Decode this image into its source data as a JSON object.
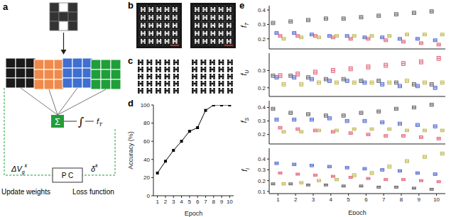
{
  "figure": {
    "panel_labels": [
      "a",
      "b",
      "c",
      "d",
      "e"
    ],
    "input_pattern": [
      [
        1,
        0,
        1
      ],
      [
        1,
        1,
        1
      ],
      [
        1,
        0,
        1
      ]
    ],
    "layer_colors": [
      "#1a1a1a",
      "#f08a4b",
      "#3f6fd1",
      "#1f9e3a"
    ],
    "sum": "Σ",
    "integral": "∫",
    "output": {
      "main": "f",
      "sub": "T"
    },
    "controller": "P C",
    "weight_update": {
      "main": "ΔV",
      "sub": "g",
      "sup": "k"
    },
    "error": {
      "main": "δ",
      "sup": "k"
    },
    "left_caption": "Update weights",
    "right_caption": "Loss function",
    "array_size": 5,
    "scale_bar_color": "#d42020"
  },
  "chart_data": [
    {
      "type": "line",
      "xlabel": "Epoch",
      "ylabel": "Accuracy (%)",
      "x": [
        1,
        2,
        3,
        4,
        5,
        6,
        7,
        8,
        9,
        10
      ],
      "values": [
        25,
        38,
        50,
        60,
        71,
        75,
        94,
        100,
        100,
        100
      ],
      "xlim": [
        0.5,
        10.5
      ],
      "xticks": [
        1,
        2,
        3,
        4,
        5,
        6,
        7,
        8,
        9,
        10
      ],
      "ylim": [
        0,
        100
      ],
      "yticks": [
        0,
        20,
        40,
        60,
        80,
        100
      ],
      "color": "#000000",
      "marker": "square"
    },
    {
      "type": "box",
      "ylabel": {
        "main": "f",
        "sub": "T"
      },
      "categories": [
        1,
        2,
        3,
        4,
        5,
        6,
        7,
        8,
        9,
        10
      ],
      "ylim": [
        0.13,
        0.43
      ],
      "yticks": [
        0.2,
        0.3,
        0.4
      ],
      "tick_labels": "y",
      "series": [
        {
          "color": "#555555",
          "values": [
            0.31,
            0.32,
            0.33,
            0.34,
            0.34,
            0.35,
            0.36,
            0.37,
            0.38,
            0.39
          ],
          "error": [
            0.012,
            0.012,
            0.012,
            0.012,
            0.012,
            0.012,
            0.012,
            0.012,
            0.012,
            0.012
          ]
        },
        {
          "color": "#3a55c8",
          "values": [
            0.24,
            0.24,
            0.23,
            0.22,
            0.22,
            0.21,
            0.21,
            0.2,
            0.2,
            0.19
          ],
          "error": [
            0.01,
            0.01,
            0.01,
            0.01,
            0.01,
            0.01,
            0.01,
            0.01,
            0.01,
            0.01
          ]
        },
        {
          "color": "#e0506a",
          "values": [
            0.22,
            0.22,
            0.22,
            0.21,
            0.2,
            0.2,
            0.19,
            0.18,
            0.17,
            0.16
          ],
          "error": [
            0.01,
            0.01,
            0.01,
            0.01,
            0.01,
            0.01,
            0.01,
            0.01,
            0.01,
            0.01
          ]
        },
        {
          "color": "#b8b040",
          "values": [
            0.2,
            0.21,
            0.21,
            0.22,
            0.22,
            0.22,
            0.22,
            0.23,
            0.23,
            0.23
          ],
          "error": [
            0.01,
            0.01,
            0.01,
            0.01,
            0.01,
            0.01,
            0.01,
            0.01,
            0.01,
            0.01
          ]
        }
      ]
    },
    {
      "type": "box",
      "ylabel": {
        "main": "f",
        "sub": "U"
      },
      "categories": [
        1,
        2,
        3,
        4,
        5,
        6,
        7,
        8,
        9,
        10
      ],
      "ylim": [
        0.15,
        0.4
      ],
      "yticks": [
        0.2,
        0.3
      ],
      "tick_labels": "y",
      "series": [
        {
          "color": "#555555",
          "values": [
            0.27,
            0.27,
            0.26,
            0.25,
            0.25,
            0.24,
            0.24,
            0.23,
            0.22,
            0.22
          ],
          "error": [
            0.01,
            0.01,
            0.01,
            0.01,
            0.01,
            0.01,
            0.01,
            0.01,
            0.01,
            0.01
          ]
        },
        {
          "color": "#3a55c8",
          "values": [
            0.26,
            0.26,
            0.25,
            0.24,
            0.24,
            0.23,
            0.22,
            0.21,
            0.21,
            0.2
          ],
          "error": [
            0.01,
            0.01,
            0.01,
            0.01,
            0.01,
            0.01,
            0.01,
            0.01,
            0.01,
            0.01
          ]
        },
        {
          "color": "#e0506a",
          "values": [
            0.27,
            0.28,
            0.29,
            0.3,
            0.31,
            0.32,
            0.33,
            0.34,
            0.35,
            0.37
          ],
          "error": [
            0.012,
            0.012,
            0.012,
            0.012,
            0.012,
            0.012,
            0.012,
            0.012,
            0.012,
            0.012
          ]
        },
        {
          "color": "#b8b040",
          "values": [
            0.22,
            0.22,
            0.23,
            0.23,
            0.23,
            0.23,
            0.23,
            0.24,
            0.23,
            0.23
          ],
          "error": [
            0.01,
            0.01,
            0.01,
            0.01,
            0.01,
            0.01,
            0.01,
            0.01,
            0.01,
            0.01
          ]
        }
      ]
    },
    {
      "type": "box",
      "ylabel": {
        "main": "f",
        "sub": "S"
      },
      "categories": [
        1,
        2,
        3,
        4,
        5,
        6,
        7,
        8,
        9,
        10
      ],
      "ylim": [
        0.13,
        0.45
      ],
      "yticks": [
        0.2,
        0.3,
        0.4
      ],
      "tick_labels": "y",
      "series": [
        {
          "color": "#555555",
          "values": [
            0.39,
            0.36,
            0.35,
            0.34,
            0.34,
            0.36,
            0.37,
            0.39,
            0.4,
            0.42
          ],
          "error": [
            0.012,
            0.012,
            0.012,
            0.012,
            0.012,
            0.012,
            0.012,
            0.012,
            0.012,
            0.012
          ]
        },
        {
          "color": "#3a55c8",
          "values": [
            0.31,
            0.31,
            0.31,
            0.32,
            0.3,
            0.3,
            0.29,
            0.28,
            0.27,
            0.26
          ],
          "error": [
            0.012,
            0.012,
            0.012,
            0.012,
            0.012,
            0.012,
            0.012,
            0.012,
            0.012,
            0.012
          ]
        },
        {
          "color": "#e0506a",
          "values": [
            0.25,
            0.24,
            0.23,
            0.22,
            0.21,
            0.2,
            0.19,
            0.19,
            0.18,
            0.17
          ],
          "error": [
            0.01,
            0.01,
            0.01,
            0.01,
            0.01,
            0.01,
            0.01,
            0.01,
            0.01,
            0.01
          ]
        },
        {
          "color": "#b8b040",
          "values": [
            0.22,
            0.22,
            0.23,
            0.23,
            0.24,
            0.24,
            0.24,
            0.23,
            0.23,
            0.23
          ],
          "error": [
            0.01,
            0.01,
            0.01,
            0.01,
            0.01,
            0.01,
            0.01,
            0.01,
            0.01,
            0.01
          ]
        }
      ]
    },
    {
      "type": "box",
      "xlabel": "Epoch",
      "ylabel": {
        "main": "f",
        "sub": "I"
      },
      "categories": [
        1,
        2,
        3,
        4,
        5,
        6,
        7,
        8,
        9,
        10
      ],
      "ylim": [
        0.08,
        0.5
      ],
      "yticks": [
        0.1,
        0.2,
        0.3,
        0.4
      ],
      "series": [
        {
          "color": "#555555",
          "values": [
            0.17,
            0.17,
            0.16,
            0.16,
            0.15,
            0.15,
            0.14,
            0.14,
            0.13,
            0.12
          ],
          "error": [
            0.01,
            0.01,
            0.01,
            0.01,
            0.01,
            0.01,
            0.01,
            0.01,
            0.01,
            0.01
          ]
        },
        {
          "color": "#3a55c8",
          "values": [
            0.36,
            0.35,
            0.34,
            0.33,
            0.32,
            0.31,
            0.3,
            0.29,
            0.27,
            0.26
          ],
          "error": [
            0.012,
            0.012,
            0.012,
            0.012,
            0.012,
            0.012,
            0.012,
            0.012,
            0.012,
            0.012
          ]
        },
        {
          "color": "#e0506a",
          "values": [
            0.27,
            0.26,
            0.25,
            0.24,
            0.23,
            0.22,
            0.21,
            0.21,
            0.2,
            0.19
          ],
          "error": [
            0.01,
            0.01,
            0.01,
            0.01,
            0.01,
            0.01,
            0.01,
            0.01,
            0.01,
            0.01
          ]
        },
        {
          "color": "#b8b040",
          "values": [
            0.17,
            0.18,
            0.2,
            0.21,
            0.25,
            0.27,
            0.33,
            0.38,
            0.42,
            0.45
          ],
          "error": [
            0.012,
            0.012,
            0.012,
            0.012,
            0.015,
            0.015,
            0.015,
            0.015,
            0.015,
            0.015
          ]
        }
      ]
    }
  ]
}
